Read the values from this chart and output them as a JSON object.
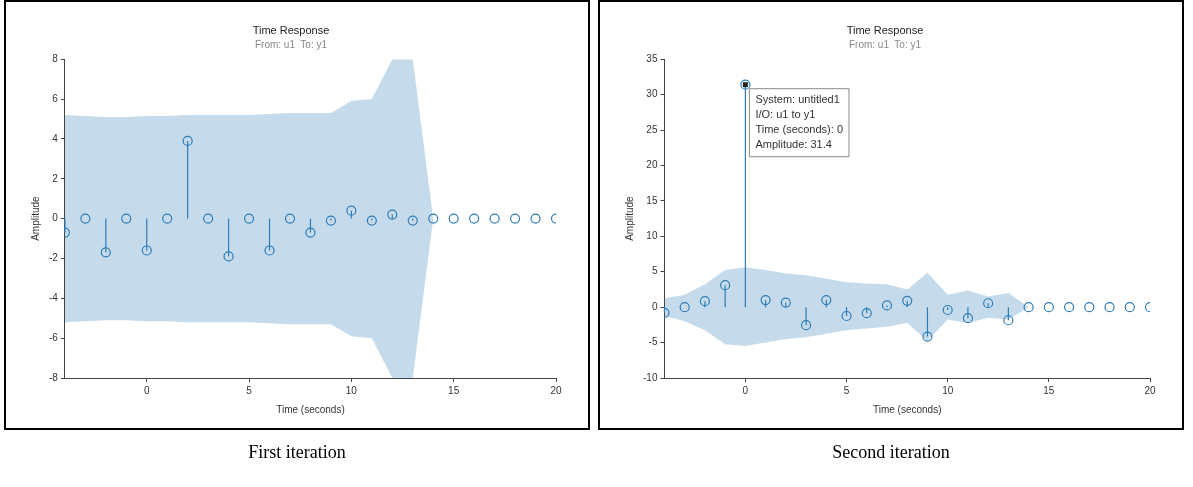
{
  "chart_data": [
    {
      "type": "lollipop",
      "title": "Time Response",
      "subtitle": "From: u1  To: y1",
      "xlabel": "Time (seconds)",
      "ylabel": "Amplitude",
      "x": [
        -4,
        -3,
        -2,
        -1,
        0,
        1,
        2,
        3,
        4,
        5,
        6,
        7,
        8,
        9,
        10,
        11,
        12,
        13,
        14,
        15,
        16,
        17,
        18,
        19,
        20
      ],
      "series": [
        {
          "color": "#2e7cb8",
          "values": [
            -0.7,
            0,
            -1.7,
            0,
            -1.6,
            0,
            3.9,
            0,
            -1.9,
            0,
            -1.6,
            0,
            -0.7,
            -0.1,
            0.4,
            -0.1,
            0.2,
            -0.1,
            0,
            0,
            0,
            0,
            0,
            0,
            0
          ],
          "upper": [
            5.2,
            5.15,
            5.1,
            5.1,
            5.15,
            5.15,
            5.2,
            5.2,
            5.2,
            5.2,
            5.25,
            5.3,
            5.3,
            5.3,
            5.9,
            6.0,
            8,
            8,
            0,
            0,
            0,
            0,
            0,
            0,
            0
          ],
          "lower": [
            -5.2,
            -5.15,
            -5.1,
            -5.1,
            -5.15,
            -5.15,
            -5.2,
            -5.2,
            -5.2,
            -5.2,
            -5.25,
            -5.3,
            -5.3,
            -5.3,
            -5.9,
            -6.0,
            -8,
            -8,
            0,
            0,
            0,
            0,
            0,
            0,
            0
          ]
        }
      ],
      "xlim": [
        -4,
        20
      ],
      "xticks": [
        0,
        5,
        10,
        15,
        20
      ],
      "ylim": [
        -8,
        8
      ],
      "yticks": [
        -8,
        -6,
        -4,
        -2,
        0,
        2,
        4,
        6,
        8
      ],
      "marker": "circle",
      "grid": false,
      "legend": false,
      "annotations": [
        "First iteration"
      ]
    },
    {
      "type": "lollipop",
      "title": "Time Response",
      "subtitle": "From: u1  To: y1",
      "xlabel": "Time (seconds)",
      "ylabel": "Amplitude",
      "x": [
        -4,
        -3,
        -2,
        -1,
        0,
        1,
        2,
        3,
        4,
        5,
        6,
        7,
        8,
        9,
        10,
        11,
        12,
        13,
        14,
        15,
        16,
        17,
        18,
        19,
        20
      ],
      "series": [
        {
          "color": "#2e7cb8",
          "values": [
            -0.8,
            0,
            0.85,
            3.1,
            31.4,
            1.0,
            0.65,
            -2.55,
            1.0,
            -1.25,
            -0.85,
            0.25,
            0.9,
            -4.15,
            -0.4,
            -1.55,
            0.55,
            -1.85,
            0,
            0,
            0,
            0,
            0,
            0,
            0
          ],
          "upper": [
            1.25,
            1.75,
            3.25,
            5.25,
            5.65,
            5.25,
            4.75,
            4.5,
            4.0,
            3.5,
            3.35,
            3.25,
            2.5,
            4.85,
            1.75,
            2.35,
            1.5,
            2.0,
            0,
            0,
            0,
            0,
            0,
            0,
            0
          ],
          "lower": [
            -1.25,
            -2,
            -3.25,
            -5.25,
            -5.5,
            -5,
            -4.5,
            -4.25,
            -3.75,
            -3.25,
            -3,
            -2.75,
            -2.25,
            -4.75,
            -1.75,
            -2.25,
            -1.5,
            -1.75,
            0,
            0,
            0,
            0,
            0,
            0,
            0
          ]
        }
      ],
      "xlim": [
        -4,
        20
      ],
      "xticks": [
        0,
        5,
        10,
        15,
        20
      ],
      "ylim": [
        -10,
        35
      ],
      "yticks": [
        -10,
        -5,
        0,
        5,
        10,
        15,
        20,
        25,
        30,
        35
      ],
      "marker": "circle",
      "grid": false,
      "legend": false,
      "annotations": [
        {
          "text": "System: untitled1\nI/O: u1 to y1\nTime (seconds): 0\nAmplitude: 31.4",
          "x": 0,
          "y": 31.4
        },
        "Second iteration"
      ]
    }
  ]
}
